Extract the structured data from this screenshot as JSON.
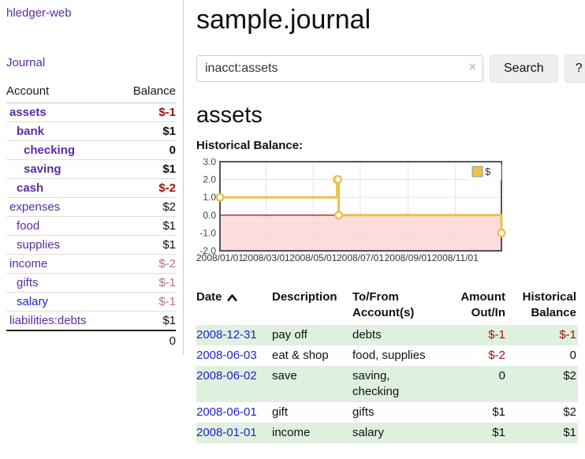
{
  "colors": {
    "link_purple": "#5a2ca0",
    "link_blue": "#2222cc",
    "negative_red": "#991111",
    "negative_muted_red": "#bd6e78",
    "row_stripe_green": "#dff0df",
    "chart_line_yellow": "#e9c14d",
    "chart_negative_fill": "#fcdcdc",
    "chart_zero_line": "#800000",
    "chart_border": "#545454",
    "chart_grid": "#e3e3e3"
  },
  "app": {
    "brand": "hledger-web",
    "nav_journal": "Journal"
  },
  "sidebar": {
    "header": {
      "account": "Account",
      "balance": "Balance"
    },
    "accounts": [
      {
        "name": "assets",
        "depth": 1,
        "balance": "$-1",
        "in_filter": true,
        "balance_style": "negative"
      },
      {
        "name": "bank",
        "depth": 2,
        "balance": "$1",
        "in_filter": true,
        "balance_style": "normal"
      },
      {
        "name": "checking",
        "depth": 3,
        "balance": "0",
        "in_filter": true,
        "balance_style": "normal"
      },
      {
        "name": "saving",
        "depth": 3,
        "balance": "$1",
        "in_filter": true,
        "balance_style": "normal"
      },
      {
        "name": "cash",
        "depth": 2,
        "balance": "$-2",
        "in_filter": true,
        "balance_style": "negative"
      },
      {
        "name": "expenses",
        "depth": 1,
        "balance": "$2",
        "in_filter": false,
        "balance_style": "normal"
      },
      {
        "name": "food",
        "depth": 2,
        "balance": "$1",
        "in_filter": false,
        "balance_style": "normal"
      },
      {
        "name": "supplies",
        "depth": 2,
        "balance": "$1",
        "in_filter": false,
        "balance_style": "normal"
      },
      {
        "name": "income",
        "depth": 1,
        "balance": "$-2",
        "in_filter": false,
        "balance_style": "muted-negative"
      },
      {
        "name": "gifts",
        "depth": 2,
        "balance": "$-1",
        "in_filter": false,
        "balance_style": "muted-negative"
      },
      {
        "name": "salary",
        "depth": 2,
        "balance": "$-1",
        "in_filter": false,
        "balance_style": "muted-negative",
        "link_color": "blue"
      },
      {
        "name": "liabilities:debts",
        "depth": 1,
        "balance": "$1",
        "in_filter": false,
        "balance_style": "normal"
      }
    ],
    "total": "0"
  },
  "header": {
    "title": "sample.journal"
  },
  "search": {
    "value": "inacct:assets",
    "clear_icon": "×",
    "button_label": "Search",
    "help_label": "?"
  },
  "account_page": {
    "title": "assets",
    "chart_label": "Historical Balance:"
  },
  "chart_data": {
    "type": "line",
    "step": true,
    "title": "Historical Balance",
    "legend": [
      {
        "label": "$",
        "color": "#e9c14d",
        "position": "top-right"
      }
    ],
    "x": [
      "2008-01-01",
      "2008-06-01",
      "2008-06-02",
      "2008-06-03",
      "2008-12-31"
    ],
    "x_days": [
      0,
      152,
      153,
      154,
      365
    ],
    "x_range_days": 365,
    "series": [
      {
        "name": "$",
        "values": [
          1,
          2,
          2,
          0,
          -1
        ]
      }
    ],
    "ylim": [
      -2,
      3
    ],
    "yticks": [
      3,
      2,
      1,
      0,
      -1,
      -2
    ],
    "ytick_labels": [
      "3.0",
      "2.0",
      "1.0",
      "0.0",
      "-1.0",
      "-2.0"
    ],
    "xtick_days": [
      0,
      60,
      121,
      182,
      244,
      305
    ],
    "xtick_labels": [
      "2008/01/01",
      "2008/03/01",
      "2008/05/01",
      "2008/07/01",
      "2008/09/01",
      "2008/11/01"
    ],
    "grid": true,
    "negative_region_shaded": true
  },
  "register": {
    "columns": [
      {
        "label": "Date",
        "sort": "ascending"
      },
      {
        "label": "Description"
      },
      {
        "label": "To/From Account(s)"
      },
      {
        "label": "Amount Out/In",
        "align": "right"
      },
      {
        "label": "Historical Balance",
        "align": "right"
      }
    ],
    "rows": [
      {
        "date": "2008-12-31",
        "description": "pay off",
        "accounts": "debts",
        "amount": "$-1",
        "balance": "$-1",
        "amount_negative": true,
        "balance_negative": true
      },
      {
        "date": "2008-06-03",
        "description": "eat & shop",
        "accounts": "food, supplies",
        "amount": "$-2",
        "balance": "0",
        "amount_negative": true,
        "balance_negative": false
      },
      {
        "date": "2008-06-02",
        "description": "save",
        "accounts": "saving, checking",
        "amount": "0",
        "balance": "$2",
        "amount_negative": false,
        "balance_negative": false
      },
      {
        "date": "2008-06-01",
        "description": "gift",
        "accounts": "gifts",
        "amount": "$1",
        "balance": "$2",
        "amount_negative": false,
        "balance_negative": false
      },
      {
        "date": "2008-01-01",
        "description": "income",
        "accounts": "salary",
        "amount": "$1",
        "balance": "$1",
        "amount_negative": false,
        "balance_negative": false
      }
    ]
  }
}
